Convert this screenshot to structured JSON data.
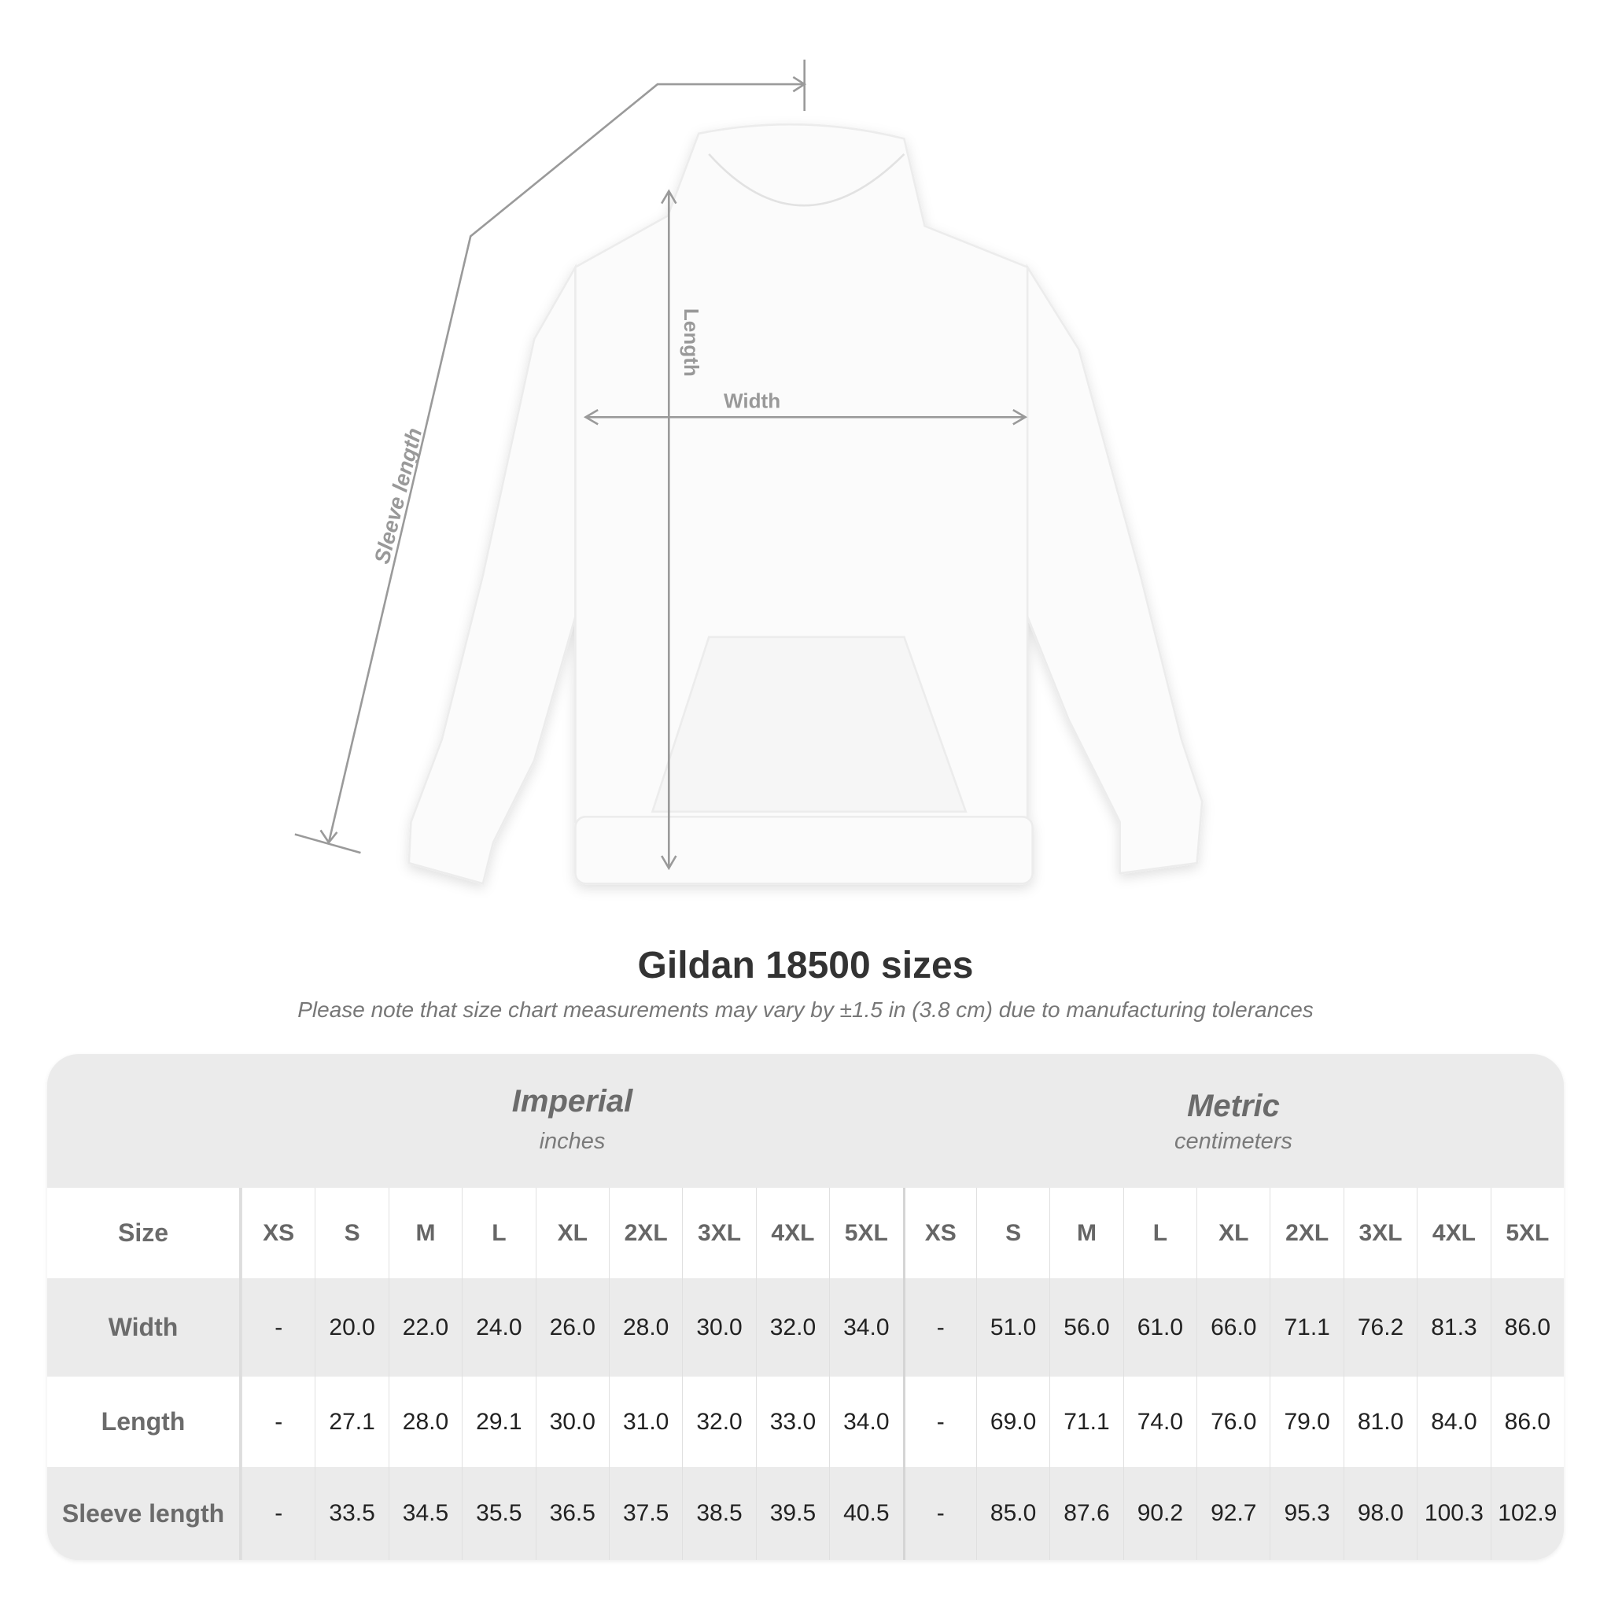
{
  "diagram": {
    "labels": {
      "sleeve": "Sleeve length",
      "length": "Length",
      "width": "Width"
    }
  },
  "title": "Gildan 18500 sizes",
  "note": "Please note that size chart measurements may vary by ±1.5 in (3.8 cm) due to manufacturing tolerances",
  "groups": [
    {
      "name": "Imperial",
      "unit": "inches"
    },
    {
      "name": "Metric",
      "unit": "centimeters"
    }
  ],
  "size_label": "Size",
  "sizes": [
    "XS",
    "S",
    "M",
    "L",
    "XL",
    "2XL",
    "3XL",
    "4XL",
    "5XL",
    "XS",
    "S",
    "M",
    "L",
    "XL",
    "2XL",
    "3XL",
    "4XL",
    "5XL"
  ],
  "rows": [
    {
      "label": "Width",
      "values": [
        "-",
        "20.0",
        "22.0",
        "24.0",
        "26.0",
        "28.0",
        "30.0",
        "32.0",
        "34.0",
        "-",
        "51.0",
        "56.0",
        "61.0",
        "66.0",
        "71.1",
        "76.2",
        "81.3",
        "86.0"
      ]
    },
    {
      "label": "Length",
      "values": [
        "-",
        "27.1",
        "28.0",
        "29.1",
        "30.0",
        "31.0",
        "32.0",
        "33.0",
        "34.0",
        "-",
        "69.0",
        "71.1",
        "74.0",
        "76.0",
        "79.0",
        "81.0",
        "84.0",
        "86.0"
      ]
    },
    {
      "label": "Sleeve length",
      "values": [
        "-",
        "33.5",
        "34.5",
        "35.5",
        "36.5",
        "37.5",
        "38.5",
        "39.5",
        "40.5",
        "-",
        "85.0",
        "87.6",
        "90.2",
        "92.7",
        "95.3",
        "98.0",
        "100.3",
        "102.9"
      ]
    }
  ]
}
